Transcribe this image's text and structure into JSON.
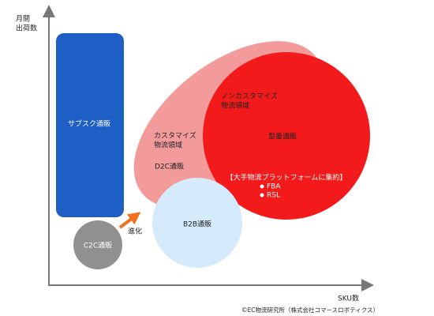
{
  "axes": {
    "y_label": [
      "月間",
      "出荷数"
    ],
    "x_label": "SKU数"
  },
  "nodes": [
    {
      "label": "サブスク通販"
    },
    {
      "label": [
        "カスタマイズ",
        "物流領域"
      ],
      "sublabel": "D2C通販"
    },
    {
      "label": [
        "ノンカスタマイズ",
        "物流領域"
      ],
      "sublabel": "型番通販",
      "note": "【大手物流プラットフォームに集約】",
      "items": [
        "FBA",
        "RSL"
      ]
    },
    {
      "label": "B2B通販"
    },
    {
      "label": "C2C通販"
    }
  ],
  "arrow": {
    "label": "進化"
  },
  "footer": {
    "credit": "©EC物流研究所（株式会社コマースロボティクス）"
  }
}
